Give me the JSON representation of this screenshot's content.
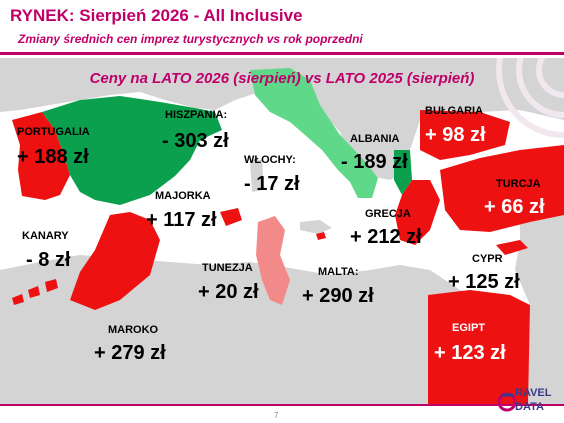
{
  "header": {
    "title": "RYNEK: Sierpień 2026 - All Inclusive",
    "subtitle": "Zmiany średnich cen imprez turystycznych vs rok poprzedni"
  },
  "chart_data": {
    "type": "map",
    "title": "Ceny na LATO 2026 (sierpień) vs  LATO 2025 (sierpień)",
    "regions": [
      {
        "name": "PORTUGALIA",
        "value": "+ 188 zł",
        "change": 188
      },
      {
        "name": "HISZPANIA:",
        "value": "- 303 zł",
        "change": -303
      },
      {
        "name": "MAJORKA",
        "value": "+ 117 zł",
        "change": 117
      },
      {
        "name": "KANARY",
        "value": "- 8 zł",
        "change": -8
      },
      {
        "name": "MAROKO",
        "value": "+ 279 zł",
        "change": 279
      },
      {
        "name": "WŁOCHY:",
        "value": "- 17 zł",
        "change": -17
      },
      {
        "name": "TUNEZJA",
        "value": "+ 20 zł",
        "change": 20
      },
      {
        "name": "MALTA:",
        "value": "+ 290 zł",
        "change": 290
      },
      {
        "name": "ALBANIA",
        "value": "- 189 zł",
        "change": -189
      },
      {
        "name": "GRECJA",
        "value": "+ 212 zł",
        "change": 212
      },
      {
        "name": "BUŁGARIA",
        "value": "+ 98 zł",
        "change": 98
      },
      {
        "name": "TURCJA",
        "value": "+ 66 zł",
        "change": 66
      },
      {
        "name": "CYPR",
        "value": "+ 125 zł",
        "change": 125
      },
      {
        "name": "EGIPT",
        "value": "+ 123 zł",
        "change": 123
      }
    ],
    "colors": {
      "increase": "#ee1111",
      "strong_decrease": "#0aa04e",
      "slight_decrease": "#5fd88a",
      "slight_increase": "#f28a8a",
      "land": "#d4d4d4",
      "sea": "#ffffff"
    }
  },
  "footer": {
    "page_number": "7",
    "logo_icon": "travel-data-logo-icon",
    "logo_line1": "RAVEL",
    "logo_line2": "DATA"
  },
  "colors": {
    "accent": "#c0006a"
  }
}
